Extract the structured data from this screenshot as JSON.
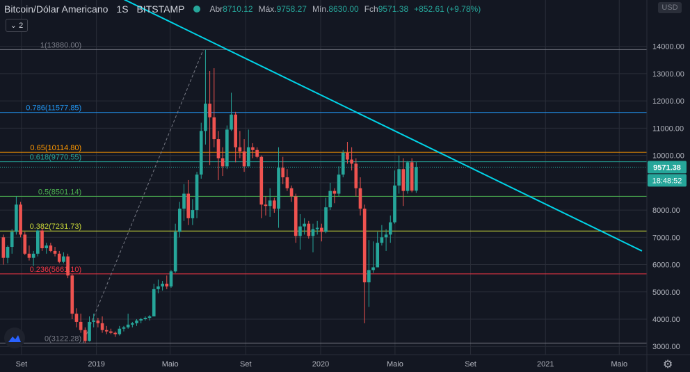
{
  "header": {
    "symbol": "Bitcoin/Dólar Americano",
    "interval": "1S",
    "exchange": "BITSTAMP",
    "open_label": "Abr",
    "open": "8710.12",
    "high_label": "Máx.",
    "high": "9758.27",
    "low_label": "Mín.",
    "low": "8630.00",
    "close_label": "Fch",
    "close": "9571.38",
    "change": "+852.61 (+9.78%)"
  },
  "collapse_label": "2",
  "currency_label": "USD",
  "last_price": "9571.38",
  "countdown": "18:48:52",
  "colors": {
    "background": "#131722",
    "up": "#26a69a",
    "down": "#ef5350",
    "trendline": "#00d4e8",
    "grid": "#2a2e39"
  },
  "chart_data": {
    "type": "candlestick",
    "title": "Bitcoin/Dólar Americano",
    "interval": "1S",
    "exchange": "BITSTAMP",
    "ylim": [
      2700,
      15700
    ],
    "y_ticks": [
      3000,
      4000,
      5000,
      6000,
      7000,
      8000,
      9000,
      10000,
      11000,
      12000,
      13000,
      14000
    ],
    "y_tick_labels": [
      "3000.00",
      "4000.00",
      "5000.00",
      "6000.00",
      "7000.00",
      "8000.00",
      "9000.00",
      "10000.00",
      "11000.00",
      "12000.00",
      "13000.00",
      "14000.00"
    ],
    "x_range": [
      "2018-07-28",
      "2021-06-15"
    ],
    "x_ticks": [
      "2018-09-01",
      "2019-01-01",
      "2019-05-01",
      "2019-09-01",
      "2020-01-01",
      "2020-05-01",
      "2020-09-01",
      "2021-01-01",
      "2021-05-01"
    ],
    "x_tick_labels": [
      "Set",
      "2019",
      "Maio",
      "Set",
      "2020",
      "Maio",
      "Set",
      "2021",
      "Maio"
    ],
    "grid": true,
    "fibonacci": [
      {
        "level": "1",
        "price": 13880.0,
        "label": "1(13880.00)",
        "color": "#787b86"
      },
      {
        "level": "0.786",
        "price": 11577.85,
        "label": "0.786(11577.85)",
        "color": "#2196f3"
      },
      {
        "level": "0.65",
        "price": 10114.8,
        "label": "0.65(10114.80)",
        "color": "#ff9800"
      },
      {
        "level": "0.618",
        "price": 9770.55,
        "label": "0.618(9770.55)",
        "color": "#26a69a"
      },
      {
        "level": "0.5",
        "price": 8501.14,
        "label": "0.5(8501.14)",
        "color": "#4caf50"
      },
      {
        "level": "0.382",
        "price": 7231.73,
        "label": "0.382(7231.73)",
        "color": "#cddc39"
      },
      {
        "level": "0.236",
        "price": 5661.1,
        "label": "0.236(5661.10)",
        "color": "#f23645"
      },
      {
        "level": "0",
        "price": 3122.28,
        "label": "0(3122.28)",
        "color": "#787b86"
      }
    ],
    "fib_anchor": {
      "from": {
        "date": "2018-12-10",
        "price": 3122.28
      },
      "to": {
        "date": "2019-06-24",
        "price": 13880.0
      }
    },
    "trendline": [
      {
        "date": "2018-12-24",
        "price": 16300
      },
      {
        "date": "2021-06-07",
        "price": 6500
      }
    ],
    "current_price": 9571.38,
    "candles": [
      {
        "date": "2018-07-30",
        "o": 7000,
        "h": 7100,
        "l": 6000,
        "c": 6250
      },
      {
        "date": "2018-08-06",
        "o": 6250,
        "h": 6700,
        "l": 6050,
        "c": 6650
      },
      {
        "date": "2018-08-13",
        "o": 6650,
        "h": 7300,
        "l": 6400,
        "c": 7200
      },
      {
        "date": "2018-08-20",
        "o": 7200,
        "h": 8500,
        "l": 7100,
        "c": 8200
      },
      {
        "date": "2018-08-27",
        "o": 8200,
        "h": 8300,
        "l": 7000,
        "c": 7100
      },
      {
        "date": "2018-09-03",
        "o": 7100,
        "h": 7200,
        "l": 6350,
        "c": 6400
      },
      {
        "date": "2018-09-10",
        "o": 6400,
        "h": 6700,
        "l": 6150,
        "c": 6250
      },
      {
        "date": "2018-09-17",
        "o": 6250,
        "h": 6500,
        "l": 5950,
        "c": 6400
      },
      {
        "date": "2018-09-24",
        "o": 6400,
        "h": 7300,
        "l": 6300,
        "c": 7250
      },
      {
        "date": "2018-10-01",
        "o": 7250,
        "h": 7350,
        "l": 6500,
        "c": 6600
      },
      {
        "date": "2018-10-08",
        "o": 6600,
        "h": 6800,
        "l": 6400,
        "c": 6700
      },
      {
        "date": "2018-10-15",
        "o": 6700,
        "h": 6800,
        "l": 6450,
        "c": 6500
      },
      {
        "date": "2018-10-22",
        "o": 6500,
        "h": 6650,
        "l": 6300,
        "c": 6400
      },
      {
        "date": "2018-10-29",
        "o": 6400,
        "h": 6500,
        "l": 6050,
        "c": 6100
      },
      {
        "date": "2018-11-05",
        "o": 6100,
        "h": 6450,
        "l": 6050,
        "c": 6300
      },
      {
        "date": "2018-11-12",
        "o": 6300,
        "h": 6400,
        "l": 5500,
        "c": 5600
      },
      {
        "date": "2018-11-19",
        "o": 5600,
        "h": 5650,
        "l": 4000,
        "c": 4200
      },
      {
        "date": "2018-11-26",
        "o": 4200,
        "h": 4400,
        "l": 3700,
        "c": 3900
      },
      {
        "date": "2018-12-03",
        "o": 3900,
        "h": 4200,
        "l": 3500,
        "c": 3600
      },
      {
        "date": "2018-12-10",
        "o": 3600,
        "h": 3700,
        "l": 3122,
        "c": 3200
      },
      {
        "date": "2018-12-17",
        "o": 3200,
        "h": 4100,
        "l": 3180,
        "c": 3900
      },
      {
        "date": "2018-12-24",
        "o": 3900,
        "h": 4200,
        "l": 3700,
        "c": 3950
      },
      {
        "date": "2018-12-31",
        "o": 3950,
        "h": 4050,
        "l": 3700,
        "c": 3850
      },
      {
        "date": "2019-01-07",
        "o": 3850,
        "h": 4100,
        "l": 3500,
        "c": 3600
      },
      {
        "date": "2019-01-14",
        "o": 3600,
        "h": 3750,
        "l": 3450,
        "c": 3550
      },
      {
        "date": "2019-01-21",
        "o": 3550,
        "h": 3650,
        "l": 3450,
        "c": 3500
      },
      {
        "date": "2019-01-28",
        "o": 3500,
        "h": 3550,
        "l": 3350,
        "c": 3450
      },
      {
        "date": "2019-02-04",
        "o": 3450,
        "h": 3750,
        "l": 3400,
        "c": 3650
      },
      {
        "date": "2019-02-11",
        "o": 3650,
        "h": 3750,
        "l": 3550,
        "c": 3700
      },
      {
        "date": "2019-02-18",
        "o": 3700,
        "h": 4200,
        "l": 3650,
        "c": 3800
      },
      {
        "date": "2019-02-25",
        "o": 3800,
        "h": 3900,
        "l": 3700,
        "c": 3850
      },
      {
        "date": "2019-03-04",
        "o": 3850,
        "h": 4000,
        "l": 3750,
        "c": 3950
      },
      {
        "date": "2019-03-11",
        "o": 3950,
        "h": 4050,
        "l": 3850,
        "c": 4000
      },
      {
        "date": "2019-03-18",
        "o": 4000,
        "h": 4100,
        "l": 3950,
        "c": 4050
      },
      {
        "date": "2019-03-25",
        "o": 4050,
        "h": 4150,
        "l": 3950,
        "c": 4100
      },
      {
        "date": "2019-04-01",
        "o": 4100,
        "h": 5300,
        "l": 4100,
        "c": 5100
      },
      {
        "date": "2019-04-08",
        "o": 5100,
        "h": 5450,
        "l": 4950,
        "c": 5200
      },
      {
        "date": "2019-04-15",
        "o": 5200,
        "h": 5400,
        "l": 5050,
        "c": 5300
      },
      {
        "date": "2019-04-22",
        "o": 5300,
        "h": 5600,
        "l": 5100,
        "c": 5200
      },
      {
        "date": "2019-04-29",
        "o": 5200,
        "h": 5800,
        "l": 5150,
        "c": 5750
      },
      {
        "date": "2019-05-06",
        "o": 5750,
        "h": 7500,
        "l": 5700,
        "c": 7200
      },
      {
        "date": "2019-05-13",
        "o": 7200,
        "h": 8300,
        "l": 7000,
        "c": 8050
      },
      {
        "date": "2019-05-20",
        "o": 8050,
        "h": 8950,
        "l": 7600,
        "c": 8600
      },
      {
        "date": "2019-05-27",
        "o": 8600,
        "h": 9100,
        "l": 7450,
        "c": 7700
      },
      {
        "date": "2019-06-03",
        "o": 7700,
        "h": 8400,
        "l": 7450,
        "c": 8000
      },
      {
        "date": "2019-06-10",
        "o": 8000,
        "h": 9400,
        "l": 7700,
        "c": 9300
      },
      {
        "date": "2019-06-17",
        "o": 9300,
        "h": 11200,
        "l": 9150,
        "c": 10900
      },
      {
        "date": "2019-06-24",
        "o": 10900,
        "h": 13880,
        "l": 10400,
        "c": 11900
      },
      {
        "date": "2019-07-01",
        "o": 11900,
        "h": 13100,
        "l": 9650,
        "c": 11400
      },
      {
        "date": "2019-07-08",
        "o": 11400,
        "h": 13200,
        "l": 10300,
        "c": 10600
      },
      {
        "date": "2019-07-15",
        "o": 10600,
        "h": 10900,
        "l": 9100,
        "c": 9900
      },
      {
        "date": "2019-07-22",
        "o": 9900,
        "h": 10300,
        "l": 9250,
        "c": 9600
      },
      {
        "date": "2019-07-29",
        "o": 9600,
        "h": 11100,
        "l": 9500,
        "c": 10950
      },
      {
        "date": "2019-08-05",
        "o": 10950,
        "h": 12300,
        "l": 10900,
        "c": 11500
      },
      {
        "date": "2019-08-12",
        "o": 11500,
        "h": 11600,
        "l": 9750,
        "c": 10300
      },
      {
        "date": "2019-08-19",
        "o": 10300,
        "h": 10900,
        "l": 9900,
        "c": 10150
      },
      {
        "date": "2019-08-26",
        "o": 10150,
        "h": 10600,
        "l": 9400,
        "c": 9600
      },
      {
        "date": "2019-09-02",
        "o": 9600,
        "h": 10950,
        "l": 9600,
        "c": 10300
      },
      {
        "date": "2019-09-09",
        "o": 10300,
        "h": 10450,
        "l": 9900,
        "c": 10200
      },
      {
        "date": "2019-09-16",
        "o": 10200,
        "h": 10300,
        "l": 9900,
        "c": 9950
      },
      {
        "date": "2019-09-23",
        "o": 9950,
        "h": 10000,
        "l": 7700,
        "c": 8200
      },
      {
        "date": "2019-09-30",
        "o": 8200,
        "h": 8500,
        "l": 7800,
        "c": 8150
      },
      {
        "date": "2019-10-07",
        "o": 8150,
        "h": 8800,
        "l": 7750,
        "c": 8350
      },
      {
        "date": "2019-10-14",
        "o": 8350,
        "h": 8450,
        "l": 7900,
        "c": 8050
      },
      {
        "date": "2019-10-21",
        "o": 8050,
        "h": 10300,
        "l": 7350,
        "c": 9550
      },
      {
        "date": "2019-10-28",
        "o": 9550,
        "h": 9950,
        "l": 8950,
        "c": 9200
      },
      {
        "date": "2019-11-04",
        "o": 9200,
        "h": 9500,
        "l": 8700,
        "c": 8800
      },
      {
        "date": "2019-11-11",
        "o": 8800,
        "h": 8900,
        "l": 8300,
        "c": 8500
      },
      {
        "date": "2019-11-18",
        "o": 8500,
        "h": 8600,
        "l": 6800,
        "c": 7050
      },
      {
        "date": "2019-11-25",
        "o": 7050,
        "h": 7850,
        "l": 6550,
        "c": 7400
      },
      {
        "date": "2019-12-02",
        "o": 7400,
        "h": 7700,
        "l": 7100,
        "c": 7500
      },
      {
        "date": "2019-12-09",
        "o": 7500,
        "h": 7600,
        "l": 6950,
        "c": 7050
      },
      {
        "date": "2019-12-16",
        "o": 7050,
        "h": 7500,
        "l": 6450,
        "c": 7300
      },
      {
        "date": "2019-12-23",
        "o": 7300,
        "h": 7600,
        "l": 7100,
        "c": 7350
      },
      {
        "date": "2019-12-30",
        "o": 7350,
        "h": 7500,
        "l": 6850,
        "c": 7200
      },
      {
        "date": "2020-01-06",
        "o": 7200,
        "h": 8450,
        "l": 7150,
        "c": 8100
      },
      {
        "date": "2020-01-13",
        "o": 8100,
        "h": 9000,
        "l": 8000,
        "c": 8700
      },
      {
        "date": "2020-01-20",
        "o": 8700,
        "h": 8800,
        "l": 8250,
        "c": 8600
      },
      {
        "date": "2020-01-27",
        "o": 8600,
        "h": 9600,
        "l": 8500,
        "c": 9300
      },
      {
        "date": "2020-02-03",
        "o": 9300,
        "h": 10200,
        "l": 9200,
        "c": 10100
      },
      {
        "date": "2020-02-10",
        "o": 10100,
        "h": 10500,
        "l": 9700,
        "c": 9850
      },
      {
        "date": "2020-02-17",
        "o": 9850,
        "h": 10300,
        "l": 9450,
        "c": 9700
      },
      {
        "date": "2020-02-24",
        "o": 9700,
        "h": 9900,
        "l": 8500,
        "c": 8800
      },
      {
        "date": "2020-03-02",
        "o": 8800,
        "h": 9200,
        "l": 7800,
        "c": 8050
      },
      {
        "date": "2020-03-09",
        "o": 8050,
        "h": 8200,
        "l": 3850,
        "c": 5350
      },
      {
        "date": "2020-03-16",
        "o": 5350,
        "h": 6900,
        "l": 4450,
        "c": 5800
      },
      {
        "date": "2020-03-23",
        "o": 5800,
        "h": 6850,
        "l": 5700,
        "c": 5900
      },
      {
        "date": "2020-03-30",
        "o": 5900,
        "h": 7200,
        "l": 5900,
        "c": 6800
      },
      {
        "date": "2020-04-06",
        "o": 6800,
        "h": 7450,
        "l": 6700,
        "c": 7000
      },
      {
        "date": "2020-04-13",
        "o": 7000,
        "h": 7300,
        "l": 6500,
        "c": 7100
      },
      {
        "date": "2020-04-20",
        "o": 7100,
        "h": 7800,
        "l": 6800,
        "c": 7550
      },
      {
        "date": "2020-04-27",
        "o": 7550,
        "h": 9450,
        "l": 7500,
        "c": 8900
      },
      {
        "date": "2020-05-04",
        "o": 8900,
        "h": 10000,
        "l": 8600,
        "c": 9500
      },
      {
        "date": "2020-05-11",
        "o": 9500,
        "h": 9900,
        "l": 8150,
        "c": 8700
      },
      {
        "date": "2020-05-18",
        "o": 8700,
        "h": 9800,
        "l": 8600,
        "c": 9750
      },
      {
        "date": "2020-05-25",
        "o": 9750,
        "h": 9900,
        "l": 8650,
        "c": 8710
      },
      {
        "date": "2020-06-01",
        "o": 8710.12,
        "h": 9758.27,
        "l": 8630,
        "c": 9571.38
      }
    ]
  }
}
